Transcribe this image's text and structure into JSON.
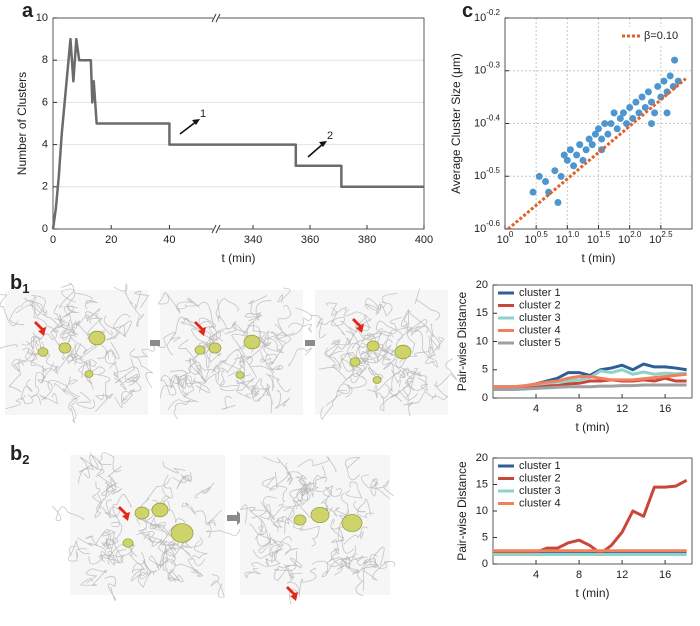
{
  "chart_data": [
    {
      "type": "line",
      "panel": "a",
      "xlabel": "t (min)",
      "ylabel": "Number of Clusters",
      "x": [
        0,
        1,
        2,
        3,
        4,
        5,
        6,
        7,
        8,
        9,
        13,
        13.5,
        14,
        15,
        40,
        40,
        355,
        355,
        371,
        371,
        400
      ],
      "values": [
        0,
        1,
        2.5,
        4.5,
        6,
        7.5,
        9,
        7,
        9,
        8,
        8,
        6,
        7,
        5,
        5,
        4,
        4,
        3,
        3,
        2,
        2
      ],
      "color": "#6b6b6b",
      "xlim": [
        0,
        400
      ],
      "xbreak": [
        56,
        327
      ],
      "xticks": [
        0,
        20,
        40,
        340,
        360,
        380,
        400
      ],
      "ylim": [
        0,
        10
      ],
      "yticks": [
        0,
        2,
        4,
        6,
        8,
        10
      ],
      "grid": true,
      "annotations": [
        "1",
        "2"
      ]
    },
    {
      "type": "scatter",
      "panel": "c",
      "xlabel": "t (min)",
      "ylabel": "Average Cluster Size (μm)",
      "xlog": true,
      "ylog": true,
      "grid": true,
      "legend": "top-right",
      "color": "#4d96cf",
      "x": [
        2.82,
        3.55,
        4.47,
        5.01,
        6.31,
        7.94,
        8.91,
        10.0,
        11.2,
        12.6,
        14.1,
        15.8,
        17.8,
        20.0,
        22.4,
        25.1,
        28.2,
        31.6,
        35.5,
        39.8,
        44.7,
        50.1,
        56.2,
        63.1,
        70.8,
        79.4,
        89.1,
        100,
        112,
        126,
        141,
        158,
        178,
        200,
        224,
        251,
        282,
        316,
        355,
        398,
        447,
        501,
        525,
        603,
        7.08,
        35.5,
        224,
        398
      ],
      "values": [
        0.295,
        0.316,
        0.309,
        0.295,
        0.324,
        0.316,
        0.347,
        0.339,
        0.355,
        0.331,
        0.347,
        0.363,
        0.339,
        0.355,
        0.372,
        0.363,
        0.38,
        0.389,
        0.372,
        0.398,
        0.38,
        0.398,
        0.417,
        0.389,
        0.407,
        0.417,
        0.398,
        0.427,
        0.407,
        0.437,
        0.417,
        0.447,
        0.427,
        0.457,
        0.437,
        0.417,
        0.468,
        0.447,
        0.479,
        0.457,
        0.49,
        0.468,
        0.525,
        0.479,
        0.282,
        0.355,
        0.398,
        0.417
      ],
      "fit": {
        "name": "β=0.10",
        "color": "#e0622a",
        "x": [
          1.122,
          794.3
        ],
        "values": [
          0.25119,
          0.4842
        ]
      },
      "xlim": [
        1,
        1000
      ],
      "xticks": [
        {
          "value": 1,
          "base": "10",
          "exponent": "0"
        },
        {
          "value": 3.1623,
          "base": "10",
          "exponent": "0.5"
        },
        {
          "value": 10,
          "base": "10",
          "exponent": "1.0"
        },
        {
          "value": 31.623,
          "base": "10",
          "exponent": "1.5"
        },
        {
          "value": 100,
          "base": "10",
          "exponent": "2.0"
        },
        {
          "value": 316.23,
          "base": "10",
          "exponent": "2.5"
        }
      ],
      "ylim": [
        0.25119,
        0.63096
      ],
      "yticks": [
        {
          "value": 0.25119,
          "base": "10",
          "exponent": "-0.6"
        },
        {
          "value": 0.31623,
          "base": "10",
          "exponent": "-0.5"
        },
        {
          "value": 0.39811,
          "base": "10",
          "exponent": "-0.4"
        },
        {
          "value": 0.50119,
          "base": "10",
          "exponent": "-0.3"
        },
        {
          "value": 0.63096,
          "base": "10",
          "exponent": "-0.2"
        }
      ]
    },
    {
      "type": "line",
      "panel": "b",
      "panel_sub": "1",
      "xlabel": "t (min)",
      "ylabel": "Pair-wise Distance",
      "legend": "top-left",
      "x": [
        0,
        1,
        2,
        3,
        4,
        5,
        6,
        7,
        8,
        9,
        10,
        11,
        12,
        13,
        14,
        15,
        16,
        17,
        18
      ],
      "series": [
        {
          "name": "cluster 1",
          "color": "#2f5f98",
          "values": [
            2,
            2,
            2,
            2,
            2.5,
            3,
            3.5,
            4.5,
            4.5,
            4,
            5,
            5.3,
            5.8,
            5,
            6,
            5.5,
            5.5,
            5.3,
            5
          ]
        },
        {
          "name": "cluster 2",
          "color": "#c8473a",
          "values": [
            1.8,
            1.8,
            2,
            2,
            2,
            2.2,
            2.2,
            2.5,
            2.6,
            3,
            3,
            3.2,
            3,
            3,
            3.2,
            3,
            3.5,
            3,
            3
          ]
        },
        {
          "name": "cluster 3",
          "color": "#8dd3c7",
          "values": [
            2,
            2,
            2,
            2.2,
            2.4,
            2.6,
            2.8,
            3,
            3.2,
            3.6,
            4.8,
            4.5,
            5,
            4.2,
            4.6,
            4.2,
            4.4,
            4.3,
            4.4
          ]
        },
        {
          "name": "cluster 4",
          "color": "#f08060",
          "values": [
            2,
            2,
            2,
            2.2,
            2.5,
            2.8,
            3,
            3.5,
            3.8,
            3.8,
            3.5,
            3.2,
            3.2,
            3.2,
            3.4,
            3.6,
            3.8,
            4,
            4.2
          ]
        },
        {
          "name": "cluster 5",
          "color": "#a0a0a0",
          "values": [
            1.5,
            1.5,
            1.5,
            1.6,
            1.7,
            1.8,
            1.9,
            2,
            2,
            2,
            2.1,
            2.1,
            2.2,
            2.2,
            2.3,
            2.3,
            2.3,
            2.3,
            2.3
          ]
        }
      ],
      "xlim": [
        0,
        18.5
      ],
      "xticks": [
        4,
        8,
        12,
        16
      ],
      "ylim": [
        0,
        20
      ],
      "yticks": [
        0,
        5,
        10,
        15,
        20
      ]
    },
    {
      "type": "line",
      "panel": "b",
      "panel_sub": "2",
      "xlabel": "t (min)",
      "ylabel": "Pair-wise Distance",
      "legend": "top-left",
      "x": [
        0,
        1,
        2,
        3,
        4,
        5,
        6,
        7,
        8,
        9,
        10,
        11,
        12,
        13,
        14,
        15,
        16,
        17,
        18
      ],
      "series": [
        {
          "name": "cluster 1",
          "color": "#2f5f98",
          "values": [
            2.3,
            2.3,
            2.3,
            2.3,
            2.3,
            2.3,
            2.3,
            2.3,
            2.3,
            2.3,
            2.3,
            2.3,
            2.3,
            2.3,
            2.3,
            2.3,
            2.3,
            2.3,
            2.3
          ]
        },
        {
          "name": "cluster 2",
          "color": "#c8473a",
          "values": [
            2,
            2,
            2,
            2,
            2.2,
            3,
            3,
            4,
            4.5,
            3.5,
            2,
            3.5,
            6,
            10,
            9,
            14.5,
            14.5,
            14.7,
            15.8
          ]
        },
        {
          "name": "cluster 3",
          "color": "#8dd3c7",
          "values": [
            1.8,
            1.8,
            1.8,
            1.8,
            1.8,
            1.8,
            1.8,
            1.8,
            1.8,
            1.8,
            1.8,
            1.8,
            1.8,
            1.8,
            1.8,
            1.8,
            1.8,
            1.8,
            1.8
          ]
        },
        {
          "name": "cluster 4",
          "color": "#f08060",
          "values": [
            2.5,
            2.5,
            2.5,
            2.5,
            2.5,
            2.5,
            2.5,
            2.5,
            2.5,
            2.5,
            2.5,
            2.5,
            2.5,
            2.5,
            2.5,
            2.5,
            2.5,
            2.5,
            2.5
          ]
        }
      ],
      "xlim": [
        0,
        18.5
      ],
      "xticks": [
        4,
        8,
        12,
        16
      ],
      "ylim": [
        0,
        20
      ],
      "yticks": [
        0,
        5,
        10,
        15,
        20
      ]
    }
  ]
}
